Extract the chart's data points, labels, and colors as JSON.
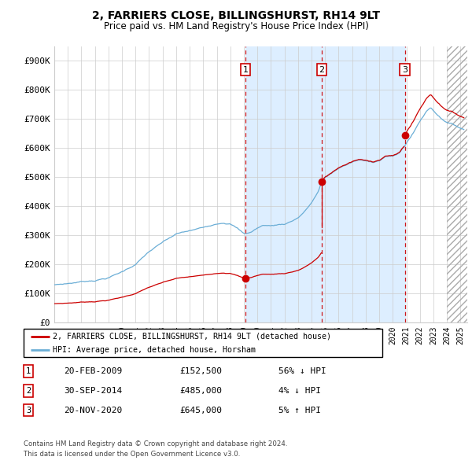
{
  "title": "2, FARRIERS CLOSE, BILLINGSHURST, RH14 9LT",
  "subtitle": "Price paid vs. HM Land Registry's House Price Index (HPI)",
  "xlim_start": 1995.0,
  "xlim_end": 2025.5,
  "ylim": [
    0,
    950000
  ],
  "yticks": [
    0,
    100000,
    200000,
    300000,
    400000,
    500000,
    600000,
    700000,
    800000,
    900000
  ],
  "ytick_labels": [
    "£0",
    "£100K",
    "£200K",
    "£300K",
    "£400K",
    "£500K",
    "£600K",
    "£700K",
    "£800K",
    "£900K"
  ],
  "hpi_color": "#6baed6",
  "price_color": "#cc0000",
  "shade_color": "#ddeeff",
  "grid_color": "#cccccc",
  "background_color": "#ffffff",
  "transactions": [
    {
      "num": 1,
      "date": "20-FEB-2009",
      "price": 152500,
      "x": 2009.13,
      "hpi_pct": "56%",
      "hpi_dir": "↓"
    },
    {
      "num": 2,
      "date": "30-SEP-2014",
      "price": 485000,
      "x": 2014.75,
      "hpi_pct": "4%",
      "hpi_dir": "↓"
    },
    {
      "num": 3,
      "date": "20-NOV-2020",
      "price": 645000,
      "x": 2020.89,
      "hpi_pct": "5%",
      "hpi_dir": "↑"
    }
  ],
  "legend_entry1": "2, FARRIERS CLOSE, BILLINGSHURST, RH14 9LT (detached house)",
  "legend_entry2": "HPI: Average price, detached house, Horsham",
  "footer1": "Contains HM Land Registry data © Crown copyright and database right 2024.",
  "footer2": "This data is licensed under the Open Government Licence v3.0.",
  "table_rows": [
    [
      "1",
      "20-FEB-2009",
      "£152,500",
      "56% ↓ HPI"
    ],
    [
      "2",
      "30-SEP-2014",
      "£485,000",
      "4% ↓ HPI"
    ],
    [
      "3",
      "20-NOV-2020",
      "£645,000",
      "5% ↑ HPI"
    ]
  ],
  "hatch_region_start": 2024.0,
  "hatch_region_end": 2025.5,
  "hpi_segments": [
    [
      1995.0,
      130000
    ],
    [
      1996.0,
      135000
    ],
    [
      1997.0,
      142000
    ],
    [
      1998.0,
      148000
    ],
    [
      1999.0,
      158000
    ],
    [
      2000.0,
      178000
    ],
    [
      2001.0,
      205000
    ],
    [
      2002.0,
      248000
    ],
    [
      2003.0,
      278000
    ],
    [
      2004.0,
      305000
    ],
    [
      2005.0,
      315000
    ],
    [
      2006.0,
      325000
    ],
    [
      2007.0,
      342000
    ],
    [
      2007.5,
      348000
    ],
    [
      2008.0,
      345000
    ],
    [
      2008.5,
      330000
    ],
    [
      2009.0,
      310000
    ],
    [
      2009.5,
      315000
    ],
    [
      2010.0,
      330000
    ],
    [
      2010.5,
      340000
    ],
    [
      2011.0,
      338000
    ],
    [
      2011.5,
      342000
    ],
    [
      2012.0,
      345000
    ],
    [
      2012.5,
      355000
    ],
    [
      2013.0,
      368000
    ],
    [
      2013.5,
      390000
    ],
    [
      2014.0,
      420000
    ],
    [
      2014.5,
      458000
    ],
    [
      2014.75,
      490000
    ],
    [
      2015.0,
      505000
    ],
    [
      2015.5,
      520000
    ],
    [
      2016.0,
      538000
    ],
    [
      2016.5,
      548000
    ],
    [
      2017.0,
      558000
    ],
    [
      2017.5,
      565000
    ],
    [
      2018.0,
      560000
    ],
    [
      2018.5,
      558000
    ],
    [
      2019.0,
      565000
    ],
    [
      2019.5,
      580000
    ],
    [
      2020.0,
      578000
    ],
    [
      2020.5,
      590000
    ],
    [
      2020.89,
      615000
    ],
    [
      2021.0,
      625000
    ],
    [
      2021.5,
      658000
    ],
    [
      2022.0,
      700000
    ],
    [
      2022.5,
      735000
    ],
    [
      2022.8,
      748000
    ],
    [
      2023.0,
      738000
    ],
    [
      2023.5,
      715000
    ],
    [
      2024.0,
      700000
    ],
    [
      2024.5,
      690000
    ],
    [
      2025.0,
      680000
    ],
    [
      2025.25,
      675000
    ]
  ]
}
